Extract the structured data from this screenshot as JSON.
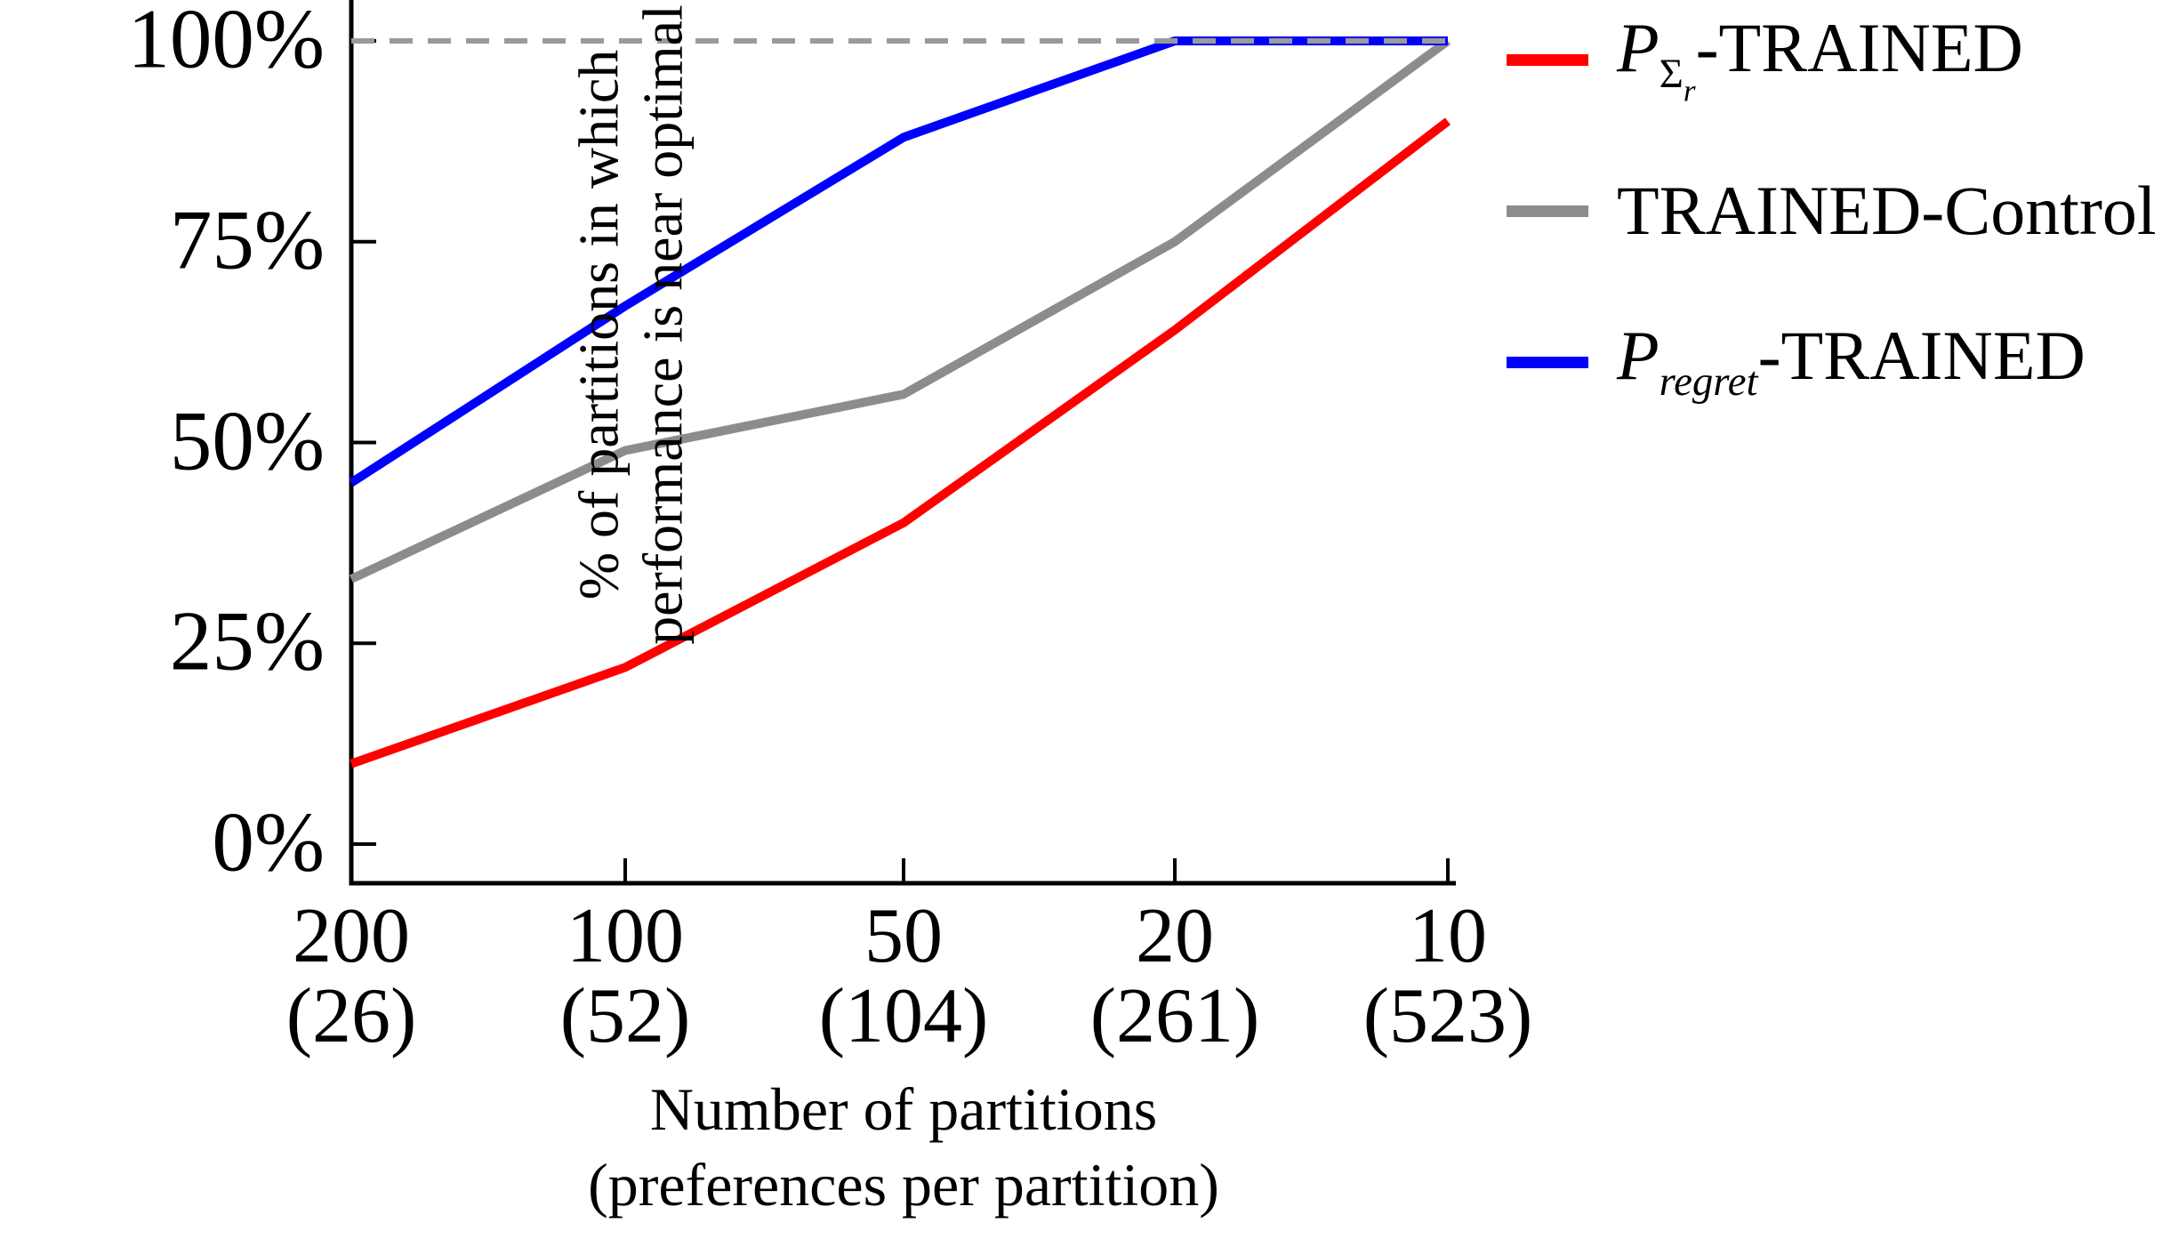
{
  "chart_data": {
    "type": "line",
    "title": "",
    "xlabel": "Number of partitions (preferences per partition)",
    "ylabel": "% of partitions in which performance is near optimal",
    "x_tick_labels_top": [
      "200",
      "100",
      "50",
      "20",
      "10"
    ],
    "x_tick_labels_bottom": [
      "(26)",
      "(52)",
      "(104)",
      "(261)",
      "(523)"
    ],
    "x_partitions": [
      200,
      100,
      50,
      20,
      10
    ],
    "preferences_per_partition": [
      26,
      52,
      104,
      261,
      523
    ],
    "y_tick_labels": [
      "100%",
      "75%",
      "50%",
      "25%",
      "0%"
    ],
    "y_tick_values": [
      100,
      75,
      50,
      25,
      0
    ],
    "ylim": [
      -5,
      104
    ],
    "grid": false,
    "legend_position": "top-right",
    "reference_line": {
      "value": 100,
      "style": "dashed",
      "color": "#9a9a9a"
    },
    "series": [
      {
        "name": "P_Sigma_r-TRAINED",
        "color": "#ff0000",
        "values": [
          10,
          22,
          40,
          64,
          90
        ]
      },
      {
        "name": "TRAINED-Control",
        "color": "#8c8c8c",
        "values": [
          33,
          49,
          56,
          75,
          100
        ]
      },
      {
        "name": "P_regret-TRAINED",
        "color": "#0000ff",
        "values": [
          45,
          67,
          88,
          100,
          100
        ]
      }
    ]
  },
  "y_axis": {
    "label_line1": "% of partitions in which",
    "label_line2": "performance is near optimal"
  },
  "x_axis": {
    "label_line1": "Number of partitions",
    "label_line2": "(preferences per partition)"
  },
  "legend": {
    "items": [
      {
        "name": "p-sigma-r-trained",
        "color": "#ff0000",
        "tokens": [
          {
            "text": "P",
            "cls": "tok-it"
          },
          {
            "text": "Σ",
            "cls": "tok-sub"
          },
          {
            "text": "r",
            "cls": "tok-subsub"
          },
          {
            "text": "-TRAINED",
            "cls": "tok-up"
          }
        ]
      },
      {
        "name": "trained-control",
        "color": "#8c8c8c",
        "tokens": [
          {
            "text": "TRAINED-Control",
            "cls": "tok-up"
          }
        ]
      },
      {
        "name": "p-regret-trained",
        "color": "#0000ff",
        "tokens": [
          {
            "text": "P",
            "cls": "tok-it"
          },
          {
            "text": "regret",
            "cls": "tok-sub tok-it"
          },
          {
            "text": "-TRAINED",
            "cls": "tok-up"
          }
        ]
      }
    ]
  },
  "colors": {
    "axis": "#000000",
    "dashed_reference": "#9a9a9a"
  }
}
